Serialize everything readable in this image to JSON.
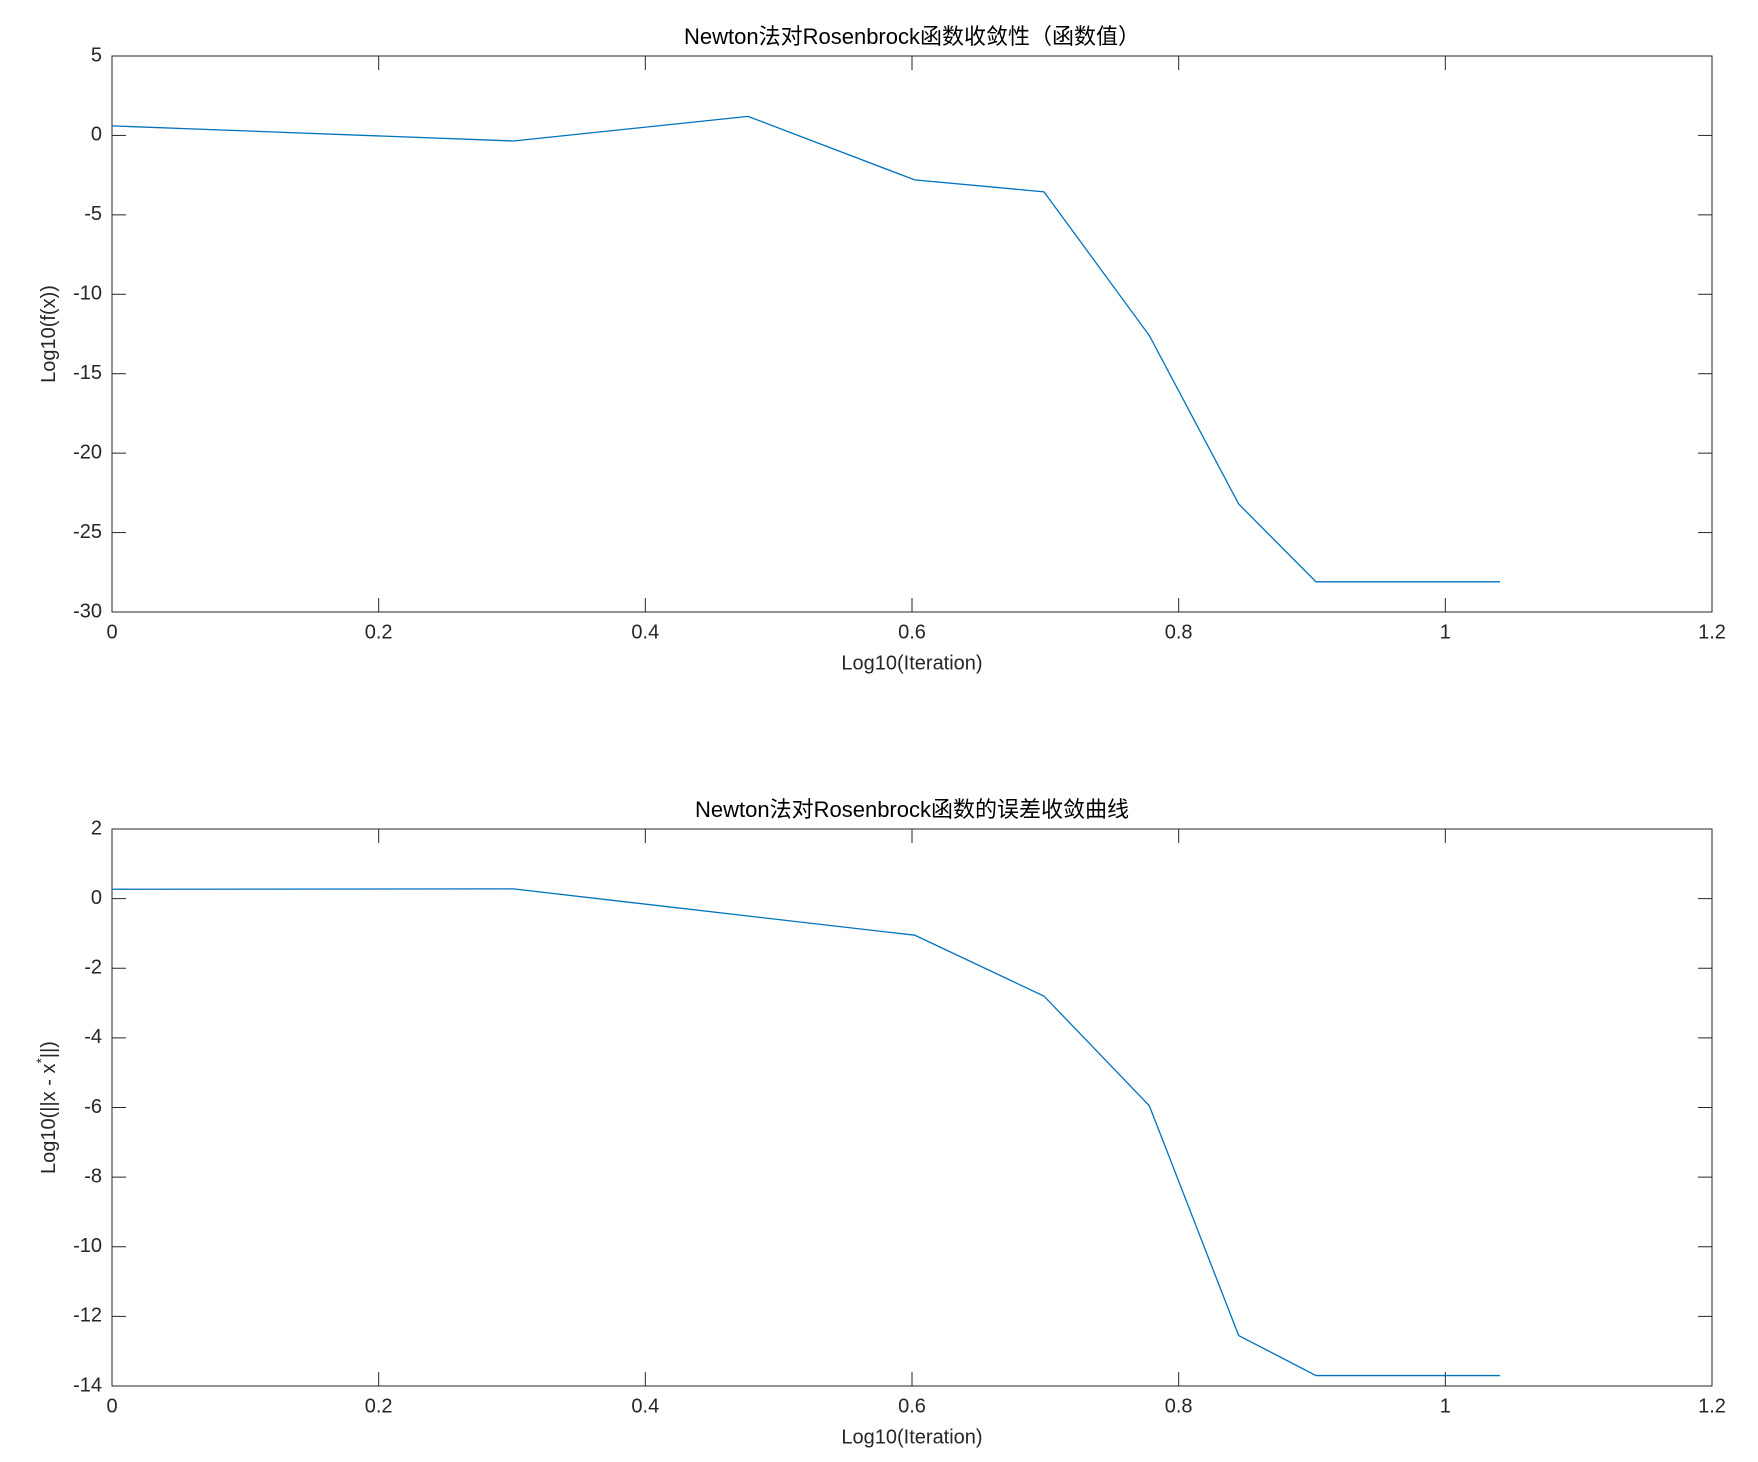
{
  "chart_data": [
    {
      "type": "line",
      "title": "Newton法对Rosenbrock函数收敛性（函数值）",
      "x_label": "Log10(Iteration)",
      "y_label_parts": [
        "Log10(f(x))"
      ],
      "x": [
        0,
        0.301,
        0.477,
        0.602,
        0.699,
        0.778,
        0.845,
        0.903,
        0.954,
        1,
        1.041
      ],
      "series": [
        {
          "color": "#0072bd",
          "values": [
            0.6,
            -0.35,
            1.2,
            -2.8,
            -3.55,
            -12.6,
            -23.2,
            -28.1,
            -28.1,
            -28.1,
            -28.1
          ]
        }
      ],
      "xlim": [
        0,
        1.2
      ],
      "xticks": [
        0,
        0.2,
        0.4,
        0.6,
        0.8,
        1,
        1.2
      ],
      "ylim": [
        -30,
        5
      ],
      "yticks": [
        -30,
        -25,
        -20,
        -15,
        -10,
        -5,
        0,
        5
      ],
      "grid": false
    },
    {
      "type": "line",
      "title": "Newton法对Rosenbrock函数的误差收敛曲线",
      "x_label": "Log10(Iteration)",
      "y_label_parts": [
        "Log10(||x - x",
        "*",
        "||)"
      ],
      "x": [
        0,
        0.301,
        0.477,
        0.602,
        0.699,
        0.778,
        0.845,
        0.903,
        0.954,
        1,
        1.041
      ],
      "series": [
        {
          "color": "#0072bd",
          "values": [
            0.27,
            0.28,
            -0.5,
            -1.05,
            -2.8,
            -5.95,
            -12.55,
            -13.7,
            -13.7,
            -13.7,
            -13.7
          ]
        }
      ],
      "xlim": [
        0,
        1.2
      ],
      "xticks": [
        0,
        0.2,
        0.4,
        0.6,
        0.8,
        1,
        1.2
      ],
      "ylim": [
        -14,
        2
      ],
      "yticks": [
        -14,
        -12,
        -10,
        -8,
        -6,
        -4,
        -2,
        0,
        2
      ],
      "grid": false
    }
  ]
}
